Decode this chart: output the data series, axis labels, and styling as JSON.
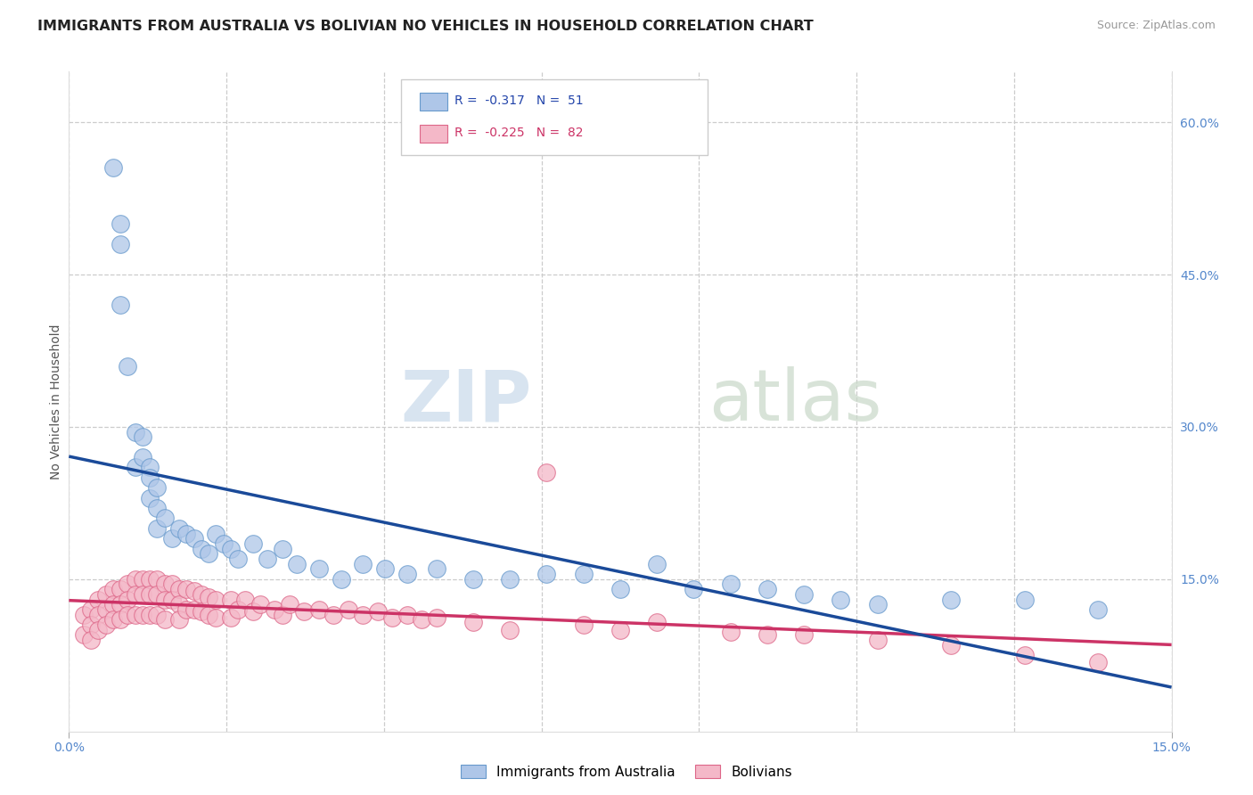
{
  "title": "IMMIGRANTS FROM AUSTRALIA VS BOLIVIAN NO VEHICLES IN HOUSEHOLD CORRELATION CHART",
  "source": "Source: ZipAtlas.com",
  "ylabel": "No Vehicles in Household",
  "xlim": [
    0.0,
    0.15
  ],
  "ylim": [
    0.0,
    0.65
  ],
  "x_tick_labels": [
    "0.0%",
    "15.0%"
  ],
  "y_ticks_right": [
    0.15,
    0.3,
    0.45,
    0.6
  ],
  "legend_entries": [
    {
      "label": "R =  -0.317   N =  51",
      "color": "#aec6e8",
      "edge": "#6699cc"
    },
    {
      "label": "R =  -0.225   N =  82",
      "color": "#f4b8c8",
      "edge": "#dd6688"
    }
  ],
  "legend_bottom": [
    {
      "label": "Immigrants from Australia",
      "color": "#aec6e8",
      "edge": "#6699cc"
    },
    {
      "label": "Bolivians",
      "color": "#f4b8c8",
      "edge": "#dd6688"
    }
  ],
  "series_australia": {
    "color": "#aec6e8",
    "edge_color": "#6699cc",
    "line_color": "#1a4a99",
    "x": [
      0.006,
      0.007,
      0.007,
      0.007,
      0.008,
      0.009,
      0.009,
      0.01,
      0.01,
      0.011,
      0.011,
      0.011,
      0.012,
      0.012,
      0.012,
      0.013,
      0.014,
      0.015,
      0.016,
      0.017,
      0.018,
      0.019,
      0.02,
      0.021,
      0.022,
      0.023,
      0.025,
      0.027,
      0.029,
      0.031,
      0.034,
      0.037,
      0.04,
      0.043,
      0.046,
      0.05,
      0.055,
      0.06,
      0.065,
      0.07,
      0.075,
      0.08,
      0.085,
      0.09,
      0.095,
      0.1,
      0.105,
      0.11,
      0.12,
      0.13,
      0.14
    ],
    "y": [
      0.555,
      0.5,
      0.48,
      0.42,
      0.36,
      0.295,
      0.26,
      0.29,
      0.27,
      0.26,
      0.25,
      0.23,
      0.24,
      0.22,
      0.2,
      0.21,
      0.19,
      0.2,
      0.195,
      0.19,
      0.18,
      0.175,
      0.195,
      0.185,
      0.18,
      0.17,
      0.185,
      0.17,
      0.18,
      0.165,
      0.16,
      0.15,
      0.165,
      0.16,
      0.155,
      0.16,
      0.15,
      0.15,
      0.155,
      0.155,
      0.14,
      0.165,
      0.14,
      0.145,
      0.14,
      0.135,
      0.13,
      0.125,
      0.13,
      0.13,
      0.12
    ]
  },
  "series_bolivian": {
    "color": "#f4b8c8",
    "edge_color": "#dd6688",
    "line_color": "#cc3366",
    "x": [
      0.002,
      0.002,
      0.003,
      0.003,
      0.003,
      0.004,
      0.004,
      0.004,
      0.005,
      0.005,
      0.005,
      0.006,
      0.006,
      0.006,
      0.007,
      0.007,
      0.007,
      0.008,
      0.008,
      0.008,
      0.009,
      0.009,
      0.009,
      0.01,
      0.01,
      0.01,
      0.011,
      0.011,
      0.011,
      0.012,
      0.012,
      0.012,
      0.013,
      0.013,
      0.013,
      0.014,
      0.014,
      0.015,
      0.015,
      0.015,
      0.016,
      0.016,
      0.017,
      0.017,
      0.018,
      0.018,
      0.019,
      0.019,
      0.02,
      0.02,
      0.022,
      0.022,
      0.023,
      0.024,
      0.025,
      0.026,
      0.028,
      0.029,
      0.03,
      0.032,
      0.034,
      0.036,
      0.038,
      0.04,
      0.042,
      0.044,
      0.046,
      0.048,
      0.05,
      0.055,
      0.06,
      0.065,
      0.07,
      0.075,
      0.08,
      0.09,
      0.095,
      0.1,
      0.11,
      0.12,
      0.13,
      0.14
    ],
    "y": [
      0.115,
      0.095,
      0.12,
      0.105,
      0.09,
      0.13,
      0.115,
      0.1,
      0.135,
      0.12,
      0.105,
      0.14,
      0.125,
      0.11,
      0.14,
      0.125,
      0.11,
      0.145,
      0.13,
      0.115,
      0.15,
      0.135,
      0.115,
      0.15,
      0.135,
      0.115,
      0.15,
      0.135,
      0.115,
      0.15,
      0.135,
      0.115,
      0.145,
      0.13,
      0.11,
      0.145,
      0.13,
      0.14,
      0.125,
      0.11,
      0.14,
      0.12,
      0.138,
      0.12,
      0.135,
      0.118,
      0.132,
      0.115,
      0.13,
      0.112,
      0.13,
      0.112,
      0.12,
      0.13,
      0.118,
      0.125,
      0.12,
      0.115,
      0.125,
      0.118,
      0.12,
      0.115,
      0.12,
      0.115,
      0.118,
      0.112,
      0.115,
      0.11,
      0.112,
      0.108,
      0.1,
      0.255,
      0.105,
      0.1,
      0.108,
      0.098,
      0.095,
      0.095,
      0.09,
      0.085,
      0.075,
      0.068
    ]
  },
  "watermark_zip": "ZIP",
  "watermark_atlas": "atlas",
  "background_color": "#ffffff",
  "grid_color": "#cccccc",
  "title_fontsize": 11.5,
  "source_fontsize": 9
}
